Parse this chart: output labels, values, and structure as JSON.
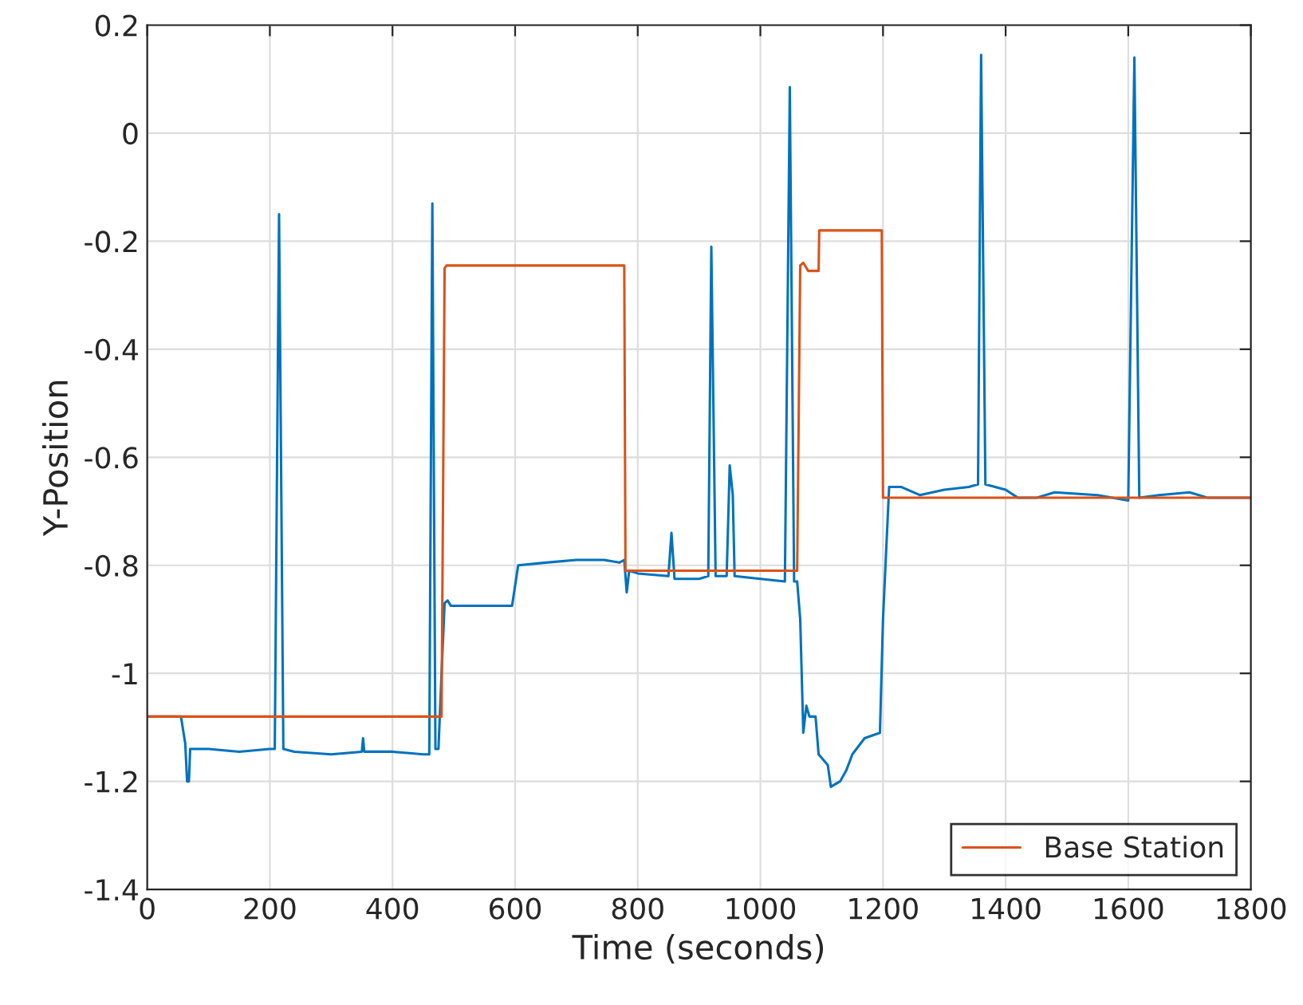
{
  "chart_data": {
    "type": "line",
    "xlabel": "Time (seconds)",
    "ylabel": "Y-Position",
    "xlim": [
      0,
      1800
    ],
    "xticks": [
      0,
      200,
      400,
      600,
      800,
      1000,
      1200,
      1400,
      1600,
      1800
    ],
    "ylim": [
      -1.4,
      0.2
    ],
    "yticks": [
      -1.4,
      -1.2,
      -1,
      -0.8,
      -0.6,
      -0.4,
      -0.2,
      0,
      0.2
    ],
    "grid": true,
    "legend": "bottom right",
    "series": [
      {
        "color": "#0072bd",
        "x": [
          0,
          55,
          62,
          65,
          68,
          70,
          100,
          150,
          200,
          208,
          215,
          222,
          240,
          300,
          350,
          352,
          354,
          400,
          450,
          460,
          465,
          470,
          475,
          480,
          485,
          490,
          495,
          540,
          595,
          605,
          650,
          700,
          745,
          770,
          778,
          782,
          786,
          800,
          850,
          855,
          860,
          900,
          915,
          920,
          927,
          945,
          950,
          955,
          958,
          1000,
          1040,
          1048,
          1055,
          1060,
          1065,
          1070,
          1075,
          1080,
          1090,
          1095,
          1110,
          1115,
          1130,
          1140,
          1150,
          1170,
          1195,
          1200,
          1210,
          1230,
          1260,
          1300,
          1340,
          1355,
          1360,
          1367,
          1400,
          1420,
          1450,
          1480,
          1550,
          1600,
          1610,
          1618,
          1650,
          1700,
          1730,
          1800
        ],
        "values": [
          -1.08,
          -1.08,
          -1.13,
          -1.2,
          -1.2,
          -1.14,
          -1.14,
          -1.145,
          -1.14,
          -1.14,
          -0.15,
          -1.14,
          -1.145,
          -1.15,
          -1.145,
          -1.12,
          -1.145,
          -1.145,
          -1.15,
          -1.15,
          -0.13,
          -1.14,
          -1.14,
          -1.0,
          -0.87,
          -0.865,
          -0.875,
          -0.875,
          -0.875,
          -0.8,
          -0.795,
          -0.79,
          -0.79,
          -0.795,
          -0.79,
          -0.85,
          -0.81,
          -0.815,
          -0.82,
          -0.74,
          -0.825,
          -0.825,
          -0.82,
          -0.21,
          -0.82,
          -0.82,
          -0.615,
          -0.67,
          -0.82,
          -0.825,
          -0.83,
          0.085,
          -0.83,
          -0.83,
          -0.9,
          -1.11,
          -1.06,
          -1.08,
          -1.08,
          -1.15,
          -1.17,
          -1.21,
          -1.2,
          -1.18,
          -1.15,
          -1.12,
          -1.11,
          -0.9,
          -0.655,
          -0.655,
          -0.67,
          -0.66,
          -0.655,
          -0.65,
          0.145,
          -0.65,
          -0.66,
          -0.675,
          -0.675,
          -0.665,
          -0.67,
          -0.68,
          0.14,
          -0.675,
          -0.67,
          -0.665,
          -0.675,
          -0.675
        ]
      },
      {
        "name": "Base Station",
        "color": "#d95319",
        "x": [
          0,
          480,
          485,
          488,
          778,
          780,
          1060,
          1065,
          1070,
          1078,
          1095,
          1096,
          1198,
          1200,
          1800
        ],
        "values": [
          -1.08,
          -1.08,
          -0.25,
          -0.245,
          -0.245,
          -0.81,
          -0.81,
          -0.245,
          -0.24,
          -0.255,
          -0.255,
          -0.18,
          -0.18,
          -0.675,
          -0.675
        ]
      }
    ]
  }
}
